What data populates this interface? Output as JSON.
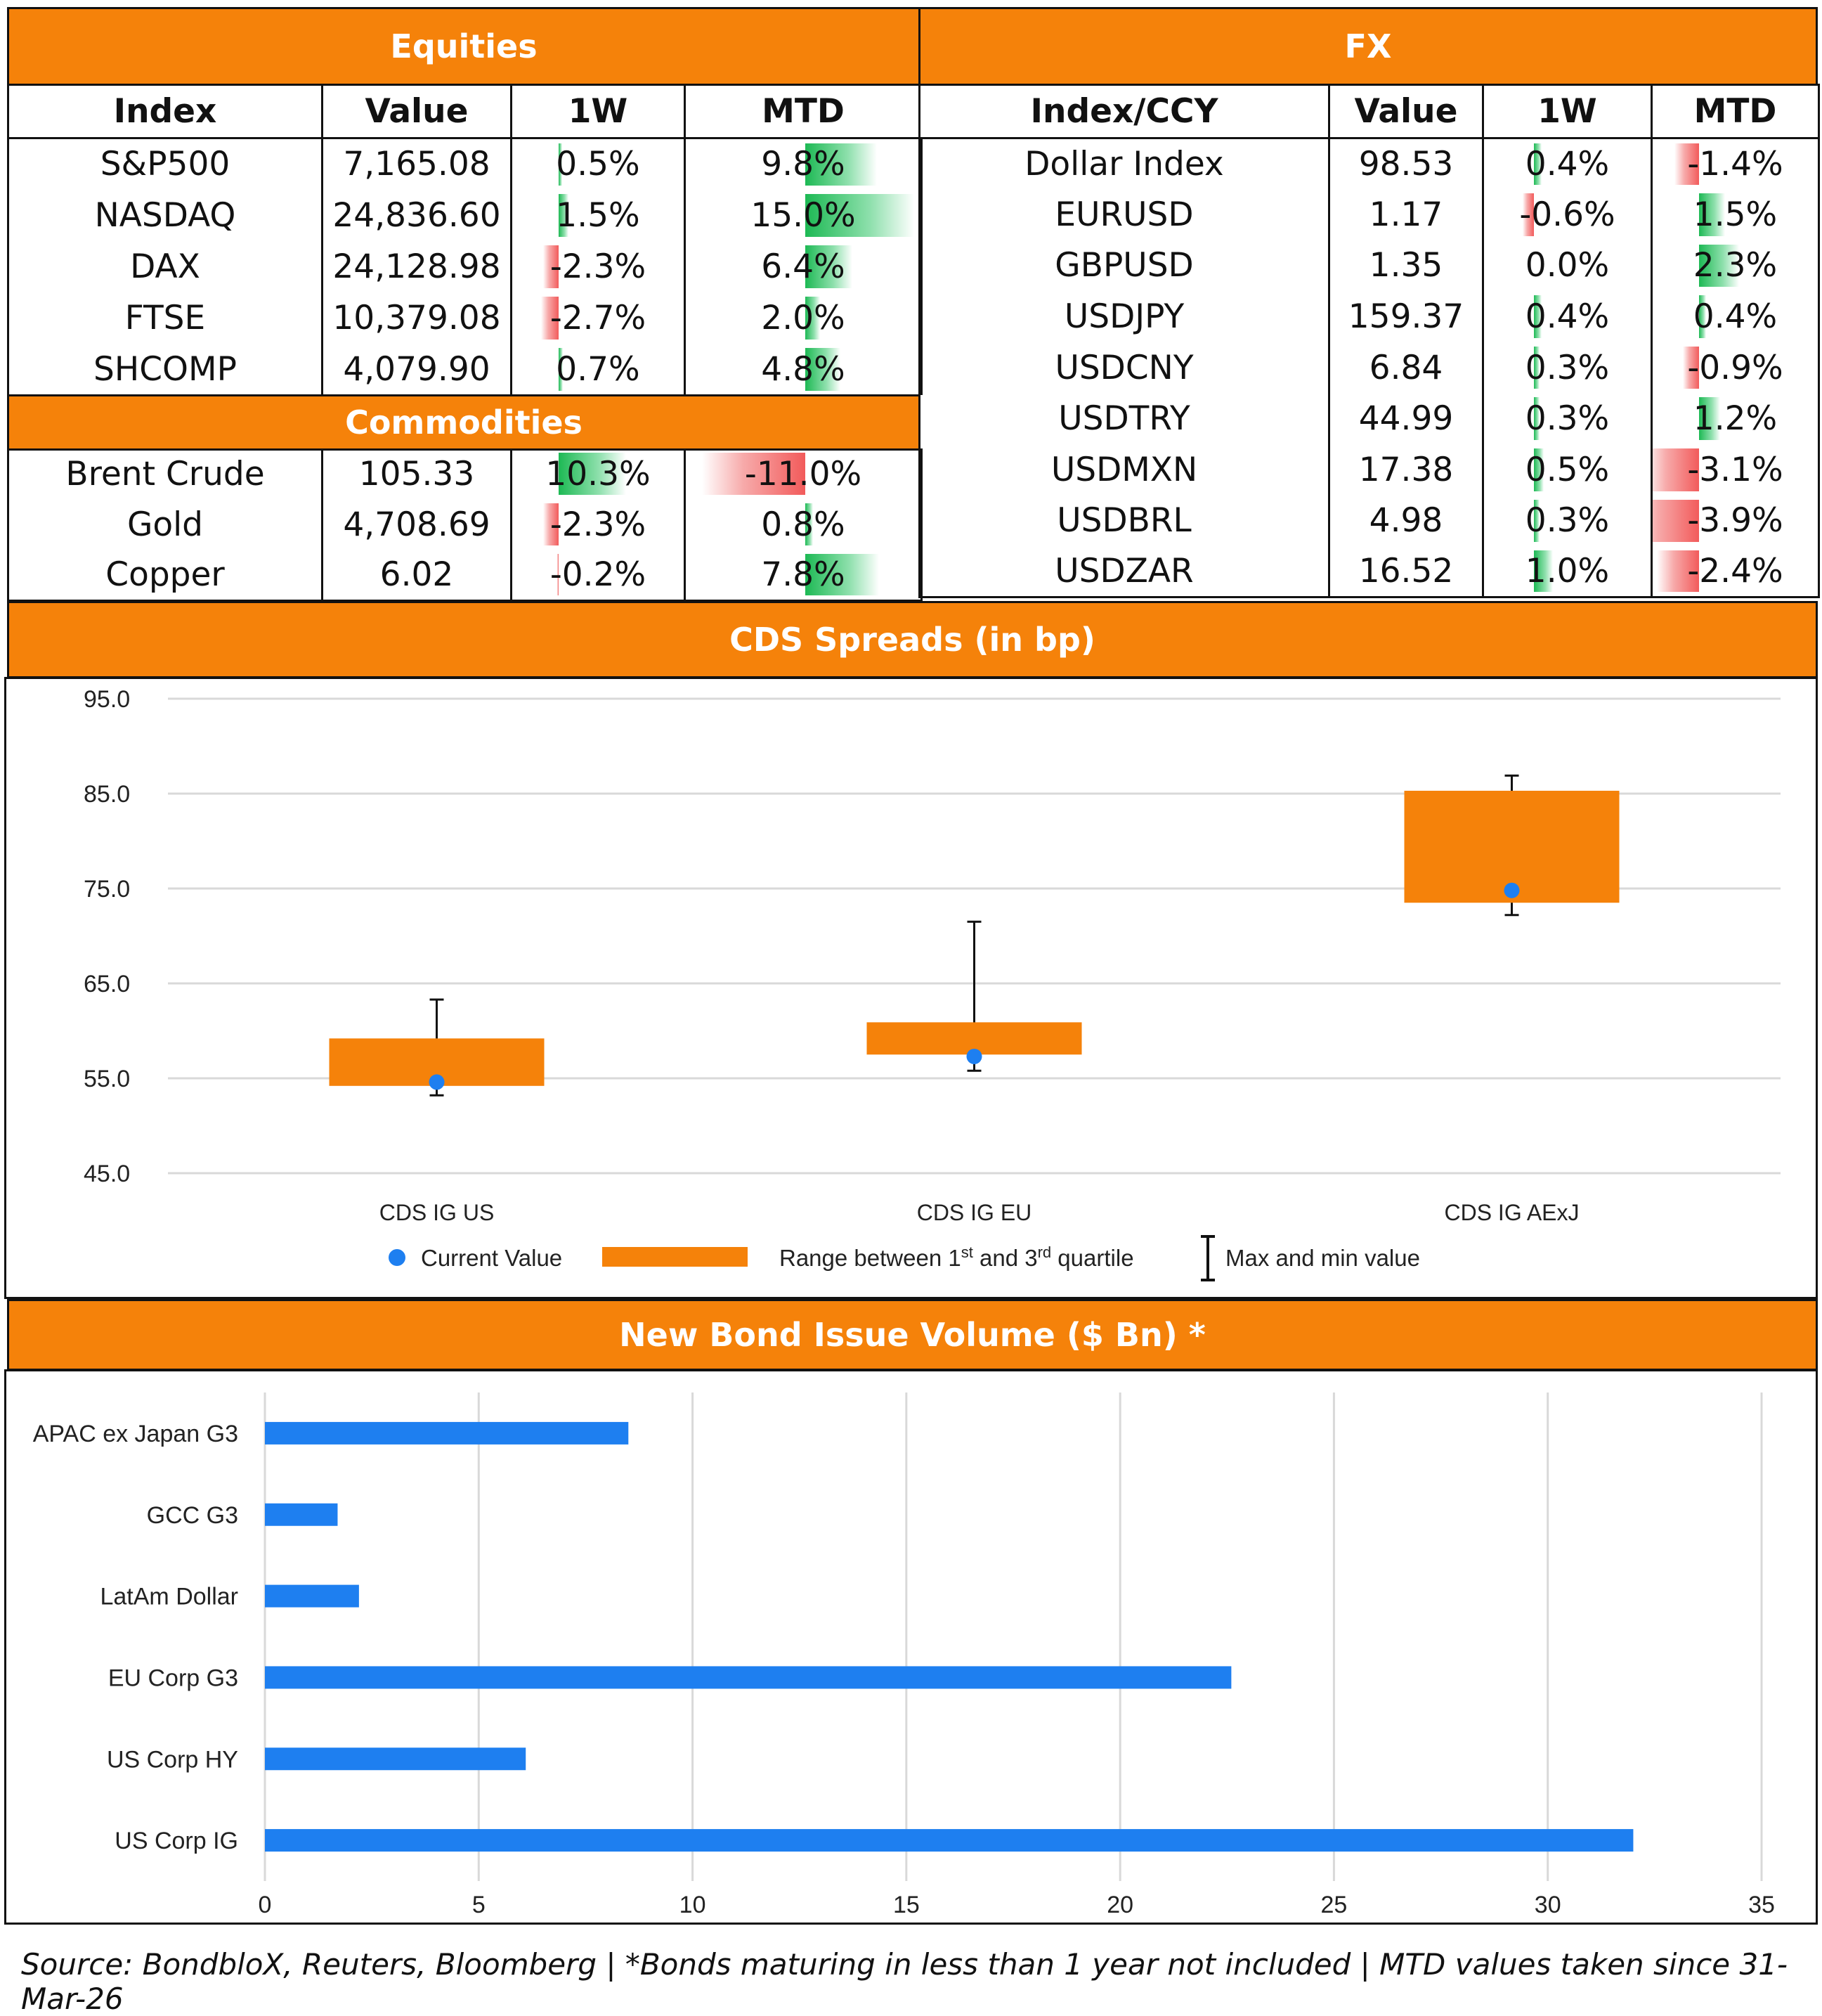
{
  "equities": {
    "title": "Equities",
    "headers": [
      "Index",
      "Value",
      "1W",
      "MTD"
    ],
    "rows": [
      {
        "name": "S&P500",
        "value": "7,165.08",
        "w1": "0.5%",
        "w1n": 0.5,
        "mtd": "9.8%",
        "mtdn": 9.8
      },
      {
        "name": "NASDAQ",
        "value": "24,836.60",
        "w1": "1.5%",
        "w1n": 1.5,
        "mtd": "15.0%",
        "mtdn": 15.0
      },
      {
        "name": "DAX",
        "value": "24,128.98",
        "w1": "-2.3%",
        "w1n": -2.3,
        "mtd": "6.4%",
        "mtdn": 6.4
      },
      {
        "name": "FTSE",
        "value": "10,379.08",
        "w1": "-2.7%",
        "w1n": -2.7,
        "mtd": "2.0%",
        "mtdn": 2.0
      },
      {
        "name": "SHCOMP",
        "value": "4,079.90",
        "w1": "0.7%",
        "w1n": 0.7,
        "mtd": "4.8%",
        "mtdn": 4.8
      }
    ]
  },
  "commodities": {
    "title": "Commodities",
    "rows": [
      {
        "name": "Brent Crude",
        "value": "105.33",
        "w1": "10.3%",
        "w1n": 10.3,
        "mtd": "-11.0%",
        "mtdn": -11.0
      },
      {
        "name": "Gold",
        "value": "4,708.69",
        "w1": "-2.3%",
        "w1n": -2.3,
        "mtd": "0.8%",
        "mtdn": 0.8
      },
      {
        "name": "Copper",
        "value": "6.02",
        "w1": "-0.2%",
        "w1n": -0.2,
        "mtd": "7.8%",
        "mtdn": 7.8
      }
    ]
  },
  "fx": {
    "title": "FX",
    "headers": [
      "Index/CCY",
      "Value",
      "1W",
      "MTD"
    ],
    "rows": [
      {
        "name": "Dollar Index",
        "value": "98.53",
        "w1": "0.4%",
        "w1n": 0.4,
        "mtd": "-1.4%",
        "mtdn": -1.4
      },
      {
        "name": "EURUSD",
        "value": "1.17",
        "w1": "-0.6%",
        "w1n": -0.6,
        "mtd": "1.5%",
        "mtdn": 1.5
      },
      {
        "name": "GBPUSD",
        "value": "1.35",
        "w1": "0.0%",
        "w1n": 0.0,
        "mtd": "2.3%",
        "mtdn": 2.3
      },
      {
        "name": "USDJPY",
        "value": "159.37",
        "w1": "0.4%",
        "w1n": 0.4,
        "mtd": "0.4%",
        "mtdn": 0.4
      },
      {
        "name": "USDCNY",
        "value": "6.84",
        "w1": "0.3%",
        "w1n": 0.3,
        "mtd": "-0.9%",
        "mtdn": -0.9
      },
      {
        "name": "USDTRY",
        "value": "44.99",
        "w1": "0.3%",
        "w1n": 0.3,
        "mtd": "1.2%",
        "mtdn": 1.2
      },
      {
        "name": "USDMXN",
        "value": "17.38",
        "w1": "0.5%",
        "w1n": 0.5,
        "mtd": "-3.1%",
        "mtdn": -3.1
      },
      {
        "name": "USDBRL",
        "value": "4.98",
        "w1": "0.3%",
        "w1n": 0.3,
        "mtd": "-3.9%",
        "mtdn": -3.9
      },
      {
        "name": "USDZAR",
        "value": "16.52",
        "w1": "1.0%",
        "w1n": 1.0,
        "mtd": "-2.4%",
        "mtdn": -2.4
      }
    ]
  },
  "colors": {
    "accent": "#F5820A",
    "bar_blue": "#1E7FF0",
    "pos": "#1DB954",
    "neg": "#F25B5B",
    "grid": "#D9D9D9"
  },
  "chart_data": [
    {
      "type": "box",
      "title": "CDS Spreads (in bp)",
      "categories": [
        "CDS IG US",
        "CDS IG EU",
        "CDS IG AExJ"
      ],
      "ylim": [
        45,
        95
      ],
      "yticks": [
        "95.0",
        "85.0",
        "75.0",
        "65.0",
        "55.0",
        "45.0"
      ],
      "ytick_values": [
        95,
        85,
        75,
        65,
        55,
        45
      ],
      "series": [
        {
          "name": "Current Value",
          "values": [
            54.6,
            57.3,
            74.8
          ]
        },
        {
          "name": "Range between 1st and 3rd quartile",
          "q1": [
            54.2,
            57.5,
            73.5
          ],
          "q3": [
            59.2,
            60.9,
            85.3
          ]
        },
        {
          "name": "Max and min value",
          "min": [
            53.2,
            55.8,
            72.2
          ],
          "max": [
            63.3,
            71.5,
            86.9
          ]
        }
      ],
      "legend": {
        "current": "Current Value",
        "range": "Range between 1st and 3rd quartile",
        "range_sup1": "st",
        "range_sup2": "rd",
        "range_pre": "Range between 1",
        "range_mid": " and 3",
        "range_post": " quartile",
        "maxmin": "Max and min value"
      },
      "legend_position": "bottom",
      "grid": true
    },
    {
      "type": "bar",
      "orientation": "horizontal",
      "title": "New Bond Issue Volume ($ Bn) *",
      "categories": [
        "APAC ex Japan G3",
        "GCC G3",
        "LatAm Dollar",
        "EU Corp G3",
        "US Corp HY",
        "US Corp IG"
      ],
      "values": [
        8.5,
        1.7,
        2.2,
        22.6,
        6.1,
        32.0
      ],
      "xlim": [
        0,
        35
      ],
      "xticks": [
        "0",
        "5",
        "10",
        "15",
        "20",
        "25",
        "30",
        "35"
      ],
      "xtick_values": [
        0,
        5,
        10,
        15,
        20,
        25,
        30,
        35
      ],
      "grid": true
    }
  ],
  "source": "Source: BondbloX, Reuters, Bloomberg | *Bonds maturing in less than 1 year not included | MTD values taken since 31-Mar-26"
}
